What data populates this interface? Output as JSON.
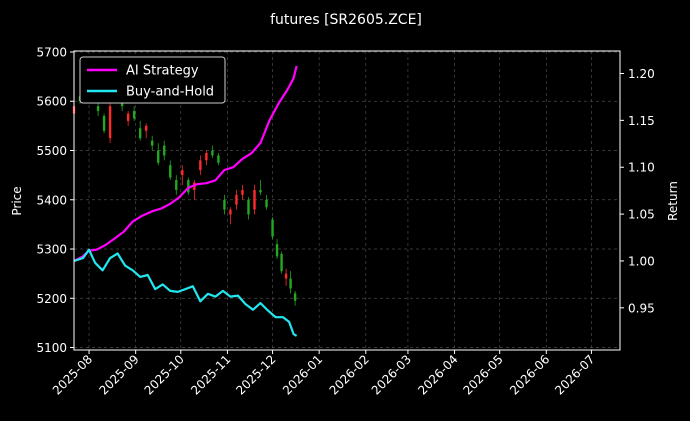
{
  "chart_data": {
    "type": "line",
    "title": "futures [SR2605.ZCE]",
    "ylabel_left": "Price",
    "ylabel_right": "Return",
    "ylim_left": [
      5095,
      5702
    ],
    "ylim_right": [
      0.905,
      1.224
    ],
    "yticks_left": [
      5100,
      5200,
      5300,
      5400,
      5500,
      5600,
      5700
    ],
    "yticks_right": [
      "0.95",
      "1.00",
      "1.05",
      "1.10",
      "1.15",
      "1.20"
    ],
    "yticks_right_values": [
      0.95,
      1.0,
      1.05,
      1.1,
      1.15,
      1.2
    ],
    "xlim": [
      "2025-07-22",
      "2026-07-20"
    ],
    "xticks": [
      "2025-08",
      "2025-09",
      "2025-10",
      "2025-11",
      "2025-12",
      "2026-01",
      "2026-02",
      "2026-03",
      "2026-04",
      "2026-05",
      "2026-06",
      "2026-07"
    ],
    "xtick_dates": [
      "2025-08-01",
      "2025-09-01",
      "2025-10-01",
      "2025-11-01",
      "2025-12-01",
      "2026-01-01",
      "2026-02-01",
      "2026-03-01",
      "2026-04-01",
      "2026-05-01",
      "2026-06-01",
      "2026-07-01"
    ],
    "grid": true,
    "legend": "top-left",
    "colors": {
      "up": "#ff2a2a",
      "down": "#22a822",
      "ai": "#ff00ff",
      "bh": "#22e6f0"
    },
    "series": [
      {
        "name": "AI Strategy",
        "x": [
          "2025-07-22",
          "2025-07-28",
          "2025-08-01",
          "2025-08-06",
          "2025-08-12",
          "2025-08-18",
          "2025-08-24",
          "2025-08-30",
          "2025-09-05",
          "2025-09-12",
          "2025-09-18",
          "2025-09-24",
          "2025-09-30",
          "2025-10-06",
          "2025-10-12",
          "2025-10-18",
          "2025-10-24",
          "2025-10-30",
          "2025-11-05",
          "2025-11-11",
          "2025-11-17",
          "2025-11-23",
          "2025-11-29",
          "2025-12-05",
          "2025-12-11",
          "2025-12-15",
          "2025-12-17"
        ],
        "values": [
          1.0,
          1.005,
          1.011,
          1.012,
          1.017,
          1.024,
          1.031,
          1.042,
          1.048,
          1.053,
          1.056,
          1.061,
          1.068,
          1.078,
          1.082,
          1.083,
          1.086,
          1.097,
          1.1,
          1.109,
          1.115,
          1.126,
          1.15,
          1.168,
          1.183,
          1.195,
          1.208
        ]
      },
      {
        "name": "Buy-and-Hold",
        "x": [
          "2025-07-22",
          "2025-07-28",
          "2025-08-01",
          "2025-08-05",
          "2025-08-10",
          "2025-08-15",
          "2025-08-20",
          "2025-08-25",
          "2025-08-30",
          "2025-09-04",
          "2025-09-09",
          "2025-09-14",
          "2025-09-19",
          "2025-09-24",
          "2025-09-29",
          "2025-10-04",
          "2025-10-09",
          "2025-10-14",
          "2025-10-19",
          "2025-10-24",
          "2025-10-29",
          "2025-11-03",
          "2025-11-08",
          "2025-11-13",
          "2025-11-18",
          "2025-11-23",
          "2025-11-28",
          "2025-12-03",
          "2025-12-08",
          "2025-12-12",
          "2025-12-15",
          "2025-12-17"
        ],
        "values": [
          1.0,
          1.003,
          1.012,
          0.998,
          0.99,
          1.003,
          1.008,
          0.995,
          0.99,
          0.983,
          0.985,
          0.97,
          0.975,
          0.968,
          0.967,
          0.97,
          0.973,
          0.957,
          0.965,
          0.962,
          0.968,
          0.962,
          0.963,
          0.954,
          0.948,
          0.955,
          0.947,
          0.94,
          0.94,
          0.935,
          0.922,
          0.92
        ]
      }
    ],
    "candles": [
      [
        "2025-07-22",
        5575,
        5595,
        5560,
        5590
      ],
      [
        "2025-07-26",
        5610,
        5625,
        5595,
        5600
      ],
      [
        "2025-07-30",
        5620,
        5640,
        5615,
        5630
      ],
      [
        "2025-08-03",
        5640,
        5655,
        5630,
        5645
      ],
      [
        "2025-08-07",
        5590,
        5600,
        5570,
        5580
      ],
      [
        "2025-08-11",
        5570,
        5575,
        5535,
        5540
      ],
      [
        "2025-08-15",
        5525,
        5600,
        5515,
        5590
      ],
      [
        "2025-08-19",
        5610,
        5640,
        5600,
        5630
      ],
      [
        "2025-08-23",
        5600,
        5605,
        5580,
        5590
      ],
      [
        "2025-08-27",
        5560,
        5580,
        5550,
        5575
      ],
      [
        "2025-08-31",
        5580,
        5590,
        5560,
        5565
      ],
      [
        "2025-09-04",
        5545,
        5560,
        5520,
        5525
      ],
      [
        "2025-09-08",
        5540,
        5555,
        5525,
        5550
      ],
      [
        "2025-09-12",
        5520,
        5530,
        5500,
        5510
      ],
      [
        "2025-09-16",
        5500,
        5515,
        5470,
        5475
      ],
      [
        "2025-09-20",
        5510,
        5520,
        5480,
        5490
      ],
      [
        "2025-09-24",
        5470,
        5480,
        5440,
        5445
      ],
      [
        "2025-09-28",
        5440,
        5450,
        5410,
        5420
      ],
      [
        "2025-10-02",
        5450,
        5470,
        5430,
        5460
      ],
      [
        "2025-10-06",
        5440,
        5445,
        5410,
        5415
      ],
      [
        "2025-10-10",
        5420,
        5440,
        5400,
        5435
      ],
      [
        "2025-10-14",
        5460,
        5490,
        5450,
        5480
      ],
      [
        "2025-10-18",
        5480,
        5500,
        5470,
        5495
      ],
      [
        "2025-10-22",
        5500,
        5510,
        5485,
        5490
      ],
      [
        "2025-10-26",
        5490,
        5495,
        5470,
        5475
      ],
      [
        "2025-10-30",
        5400,
        5410,
        5370,
        5380
      ],
      [
        "2025-11-03",
        5370,
        5385,
        5350,
        5380
      ],
      [
        "2025-11-07",
        5390,
        5420,
        5380,
        5410
      ],
      [
        "2025-11-11",
        5410,
        5430,
        5400,
        5420
      ],
      [
        "2025-11-15",
        5400,
        5405,
        5360,
        5370
      ],
      [
        "2025-11-19",
        5380,
        5430,
        5370,
        5420
      ],
      [
        "2025-11-23",
        5420,
        5440,
        5410,
        5415
      ],
      [
        "2025-11-27",
        5400,
        5410,
        5380,
        5385
      ],
      [
        "2025-12-01",
        5360,
        5365,
        5320,
        5325
      ],
      [
        "2025-12-04",
        5310,
        5320,
        5280,
        5285
      ],
      [
        "2025-12-07",
        5290,
        5295,
        5250,
        5255
      ],
      [
        "2025-12-10",
        5240,
        5260,
        5225,
        5250
      ],
      [
        "2025-12-13",
        5240,
        5255,
        5210,
        5220
      ],
      [
        "2025-12-16",
        5210,
        5215,
        5185,
        5195
      ]
    ]
  }
}
